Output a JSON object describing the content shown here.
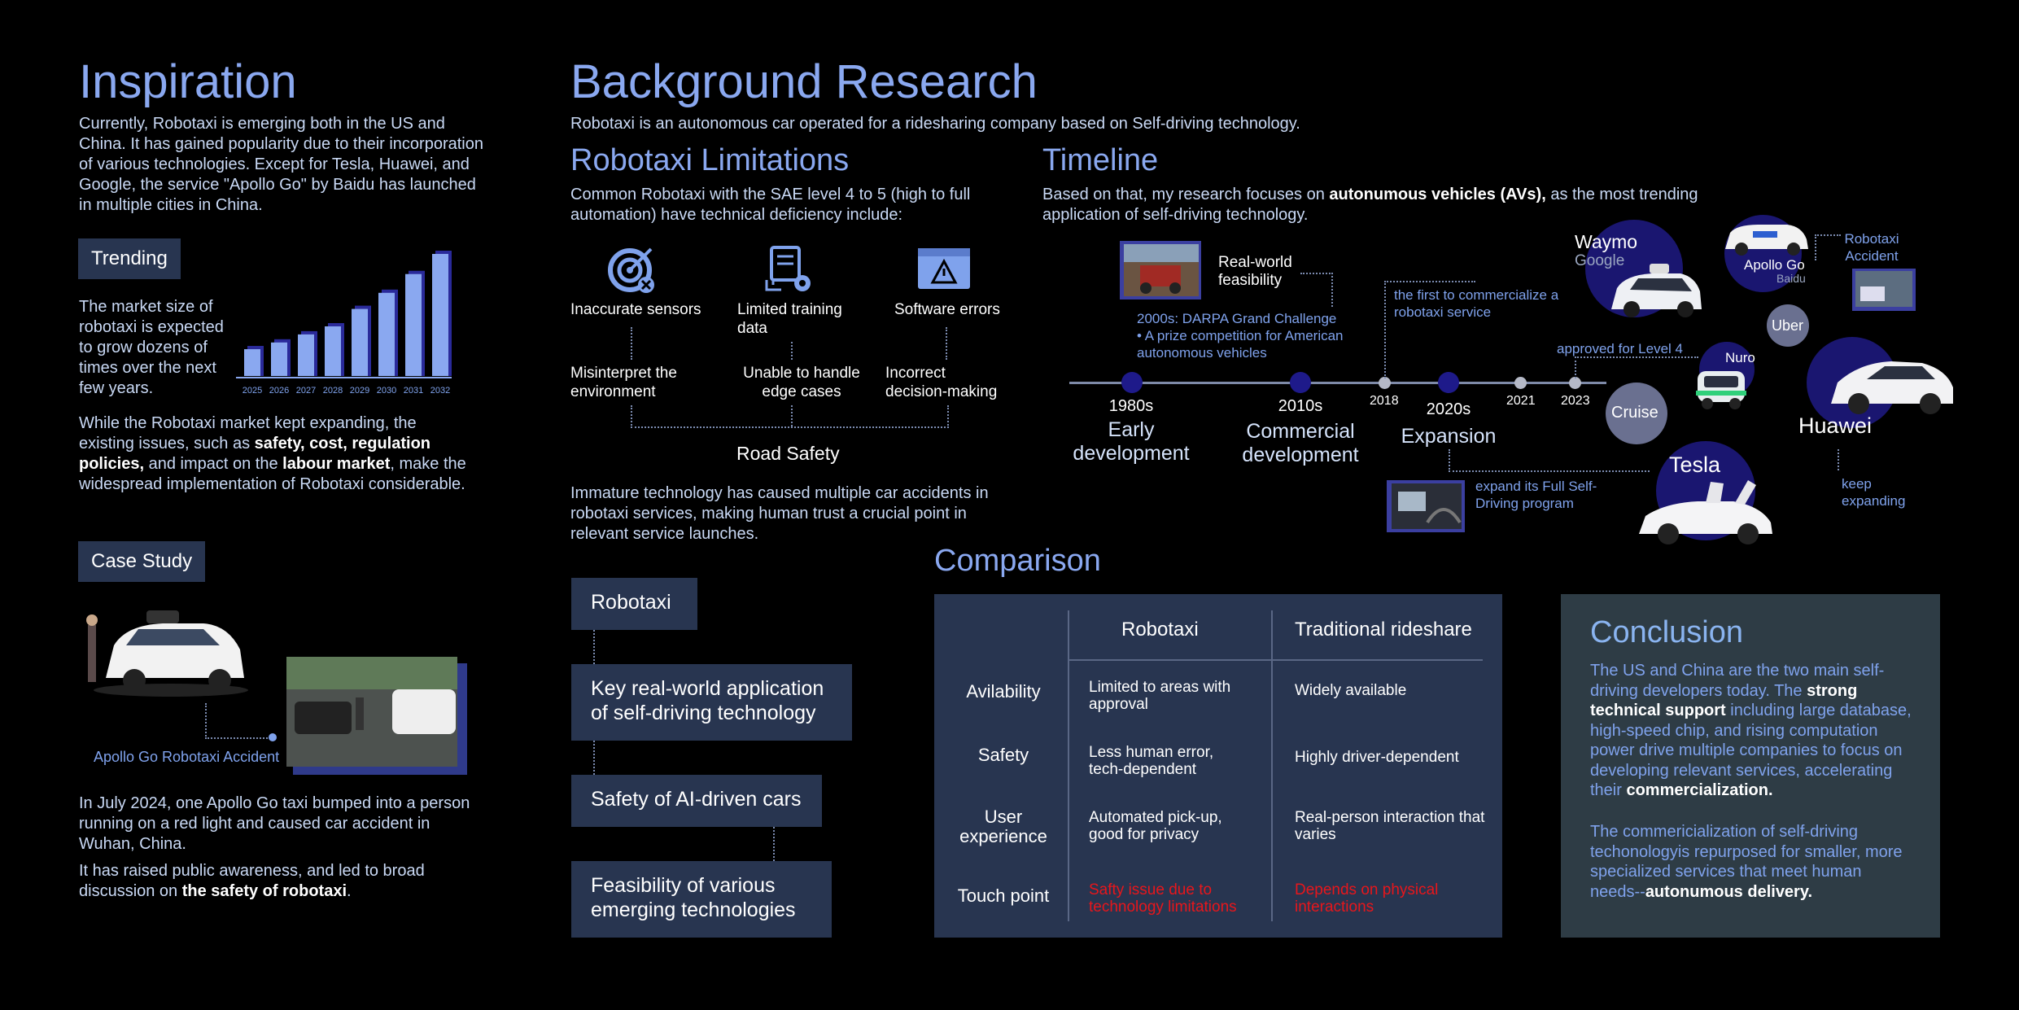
{
  "inspiration": {
    "title": "Inspiration",
    "intro": "Currently, Robotaxi is emerging both in the US and China. It has gained popularity due to their incorpo­ration of various technologies. Except for Tesla, Huawei, and Google, the service \"Apollo Go\" by Baidu has launched in multiple cities in China.",
    "trending_label": "Trending",
    "trending_text": "The market size of robotaxi is expect­ed to grow dozens of times over the next few years.",
    "years": [
      "2025",
      "2026",
      "2027",
      "2028",
      "2029",
      "2030",
      "2031",
      "2032"
    ],
    "issues_text_1": "While the Robotaxi market kept expanding, the existing issues, such as ",
    "issues_bold_1": "safety, cost, regulation policies,",
    "issues_text_2": " and impact on the ",
    "issues_bold_2": "labour market",
    "issues_text_3": ", make the widespread implementation of Robotaxi considerable.",
    "case_label": "Case Study",
    "accident_caption": "Apollo Go Robotaxi Accident",
    "case_text": "In July 2024, one Apollo Go taxi bumped into a person running on a red light and caused car accident in Wuhan, China.",
    "awareness_text": "It has raised public awareness, and led to broad discussion on ",
    "awareness_bold": "the safety of robotaxi",
    "awareness_end": "."
  },
  "chart_data": {
    "type": "bar",
    "categories": [
      "2025",
      "2026",
      "2027",
      "2028",
      "2029",
      "2030",
      "2031",
      "2032"
    ],
    "values": [
      1.0,
      1.25,
      1.55,
      1.85,
      2.5,
      3.1,
      3.8,
      4.55
    ],
    "color": "#8aa8f0"
  },
  "background": {
    "title": "Background Research",
    "subtitle": "Robotaxi is an autonomous car operated for a ridesharing company based on Self-driving technology."
  },
  "limitations": {
    "title": "Robotaxi Limitations",
    "text": "Common Robotaxi with the SAE level 4 to 5 (high to full automation) have technical deficiency include:",
    "items": [
      {
        "icon": "target-icon",
        "label": "Inaccurate sensors",
        "effect": "Misinterpret the environment"
      },
      {
        "icon": "data-gear-icon",
        "label": "Limited training data",
        "effect": "Unable to handle edge cases"
      },
      {
        "icon": "warning-window-icon",
        "label": "Software errors",
        "effect": "Incorrect decision-making"
      }
    ],
    "result": "Road Safety",
    "conclusion": "Immature technology has caused multiple car accidents in robotaxi services, making human trust a crucial point in relevant service launches."
  },
  "flow": [
    "Robotaxi",
    "Key real-world application of self-driving technology",
    "Safety of AI-driven cars",
    "Feasibility of various emerging technologies"
  ],
  "timeline": {
    "title": "Timeline",
    "text_1": "Based on that, my research focuses on ",
    "text_bold": "autonumous vehicles (AVs),",
    "text_2": " as the most trending application of self-driving technology.",
    "feasibility": "Real-world feasibility",
    "darpa_1": "2000s: DARPA Grand Challenge",
    "darpa_2": "• A prize competition for American autonomous vehicles",
    "first_commercialize": "the first to commercialize a robotaxi service",
    "approved": "approved for Level 4",
    "fsd": "expand its Full Self-Driving program",
    "keep_expanding": "keep expanding",
    "robotaxi_accident": "Robotaxi Accident",
    "eras": [
      {
        "year": "1980s",
        "label": "Early development"
      },
      {
        "year": "2010s",
        "label": "Commercial development"
      },
      {
        "year": "2020s",
        "label": "Expansion"
      }
    ],
    "minor_years": [
      "2018",
      "2021",
      "2023"
    ],
    "companies": {
      "waymo": "Waymo",
      "google": "Google",
      "apollo": "Apollo Go",
      "baidu": "Baidu",
      "uber": "Uber",
      "nuro": "Nuro",
      "cruise": "Cruise",
      "tesla": "Tesla",
      "huawei": "Huawei"
    }
  },
  "comparison": {
    "title": "Comparison",
    "headers": [
      "Robotaxi",
      "Traditional rideshare"
    ],
    "rows": [
      {
        "label": "Avilability",
        "robotaxi": "Limited to areas with approval",
        "traditional": "Widely available"
      },
      {
        "label": "Safety",
        "robotaxi": "Less human error, tech-dependent",
        "traditional": "Highly driver-dependent"
      },
      {
        "label": "User experience",
        "robotaxi": "Automated pick-up, good for privacy",
        "traditional": "Real-person interaction that varies"
      },
      {
        "label": "Touch point",
        "robotaxi": "Safty issue due to technology limitations",
        "traditional": "Depends on physical interactions"
      }
    ]
  },
  "conclusion": {
    "title": "Conclusion",
    "p1_a": "The US and China are the two main self-driving developers today. The ",
    "p1_b": "strong technical support",
    "p1_c": " including large data­base, high-speed chip, and rising compu­tation power drive multiple companies to focus on developing relevant services, accelerating their ",
    "p1_d": "commercialization.",
    "p2_a": "The commericialization of self-driving techonologyis repurposed for smaller, more specialized services that meet human needs--",
    "p2_b": "autonumous delivery."
  }
}
